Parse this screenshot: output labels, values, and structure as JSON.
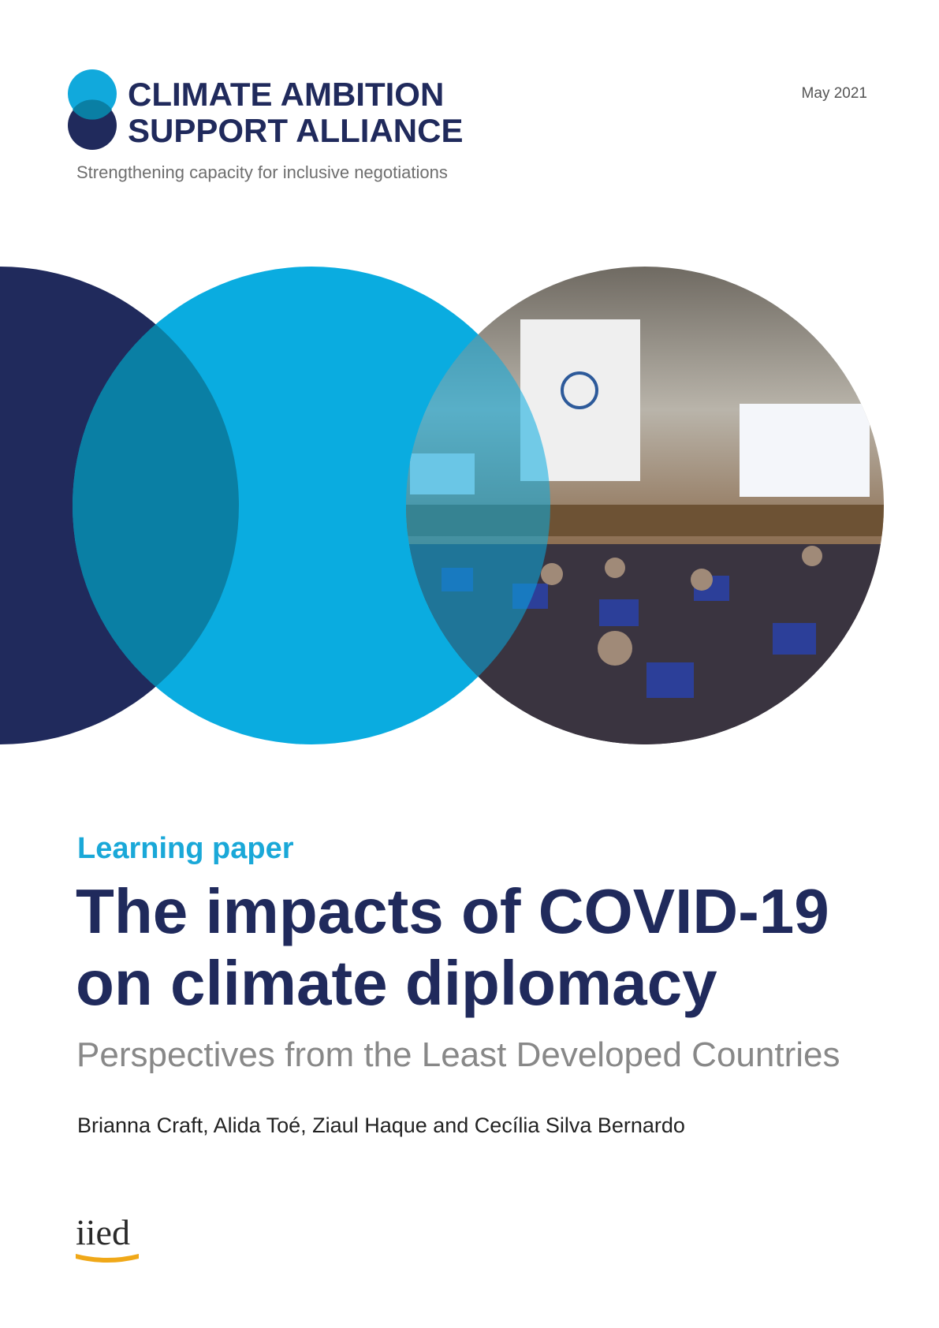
{
  "header": {
    "org_name": [
      "CLIMATE AMBITION",
      "SUPPORT ALLIANCE"
    ],
    "tagline": "Strengthening capacity for inclusive negotiations",
    "date": "May 2021"
  },
  "paper": {
    "label": "Learning paper",
    "title": [
      "The impacts of COVID-19",
      "on climate diplomacy"
    ],
    "subtitle": "Perspectives from the Least Developed Countries",
    "authors": "Brianna Craft, Alida Toé, Ziaul Haque and Cecília Silva Bernardo"
  },
  "footer": {
    "logo": "iied"
  }
}
